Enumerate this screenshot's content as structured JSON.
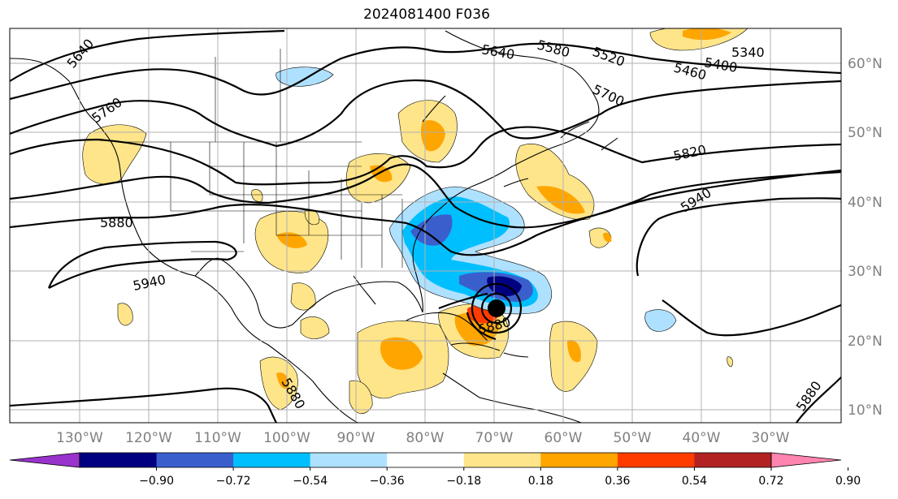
{
  "title": "2024081400 F036",
  "lon_ticks": [
    "130°W",
    "120°W",
    "110°W",
    "100°W",
    "90°W",
    "80°W",
    "70°W",
    "60°W",
    "50°W",
    "40°W",
    "30°W"
  ],
  "lat_ticks": [
    "60°N",
    "50°N",
    "40°N",
    "30°N",
    "20°N",
    "10°N"
  ],
  "contour_labels": [
    "5640",
    "5640",
    "5580",
    "5520",
    "5460",
    "5400",
    "5340",
    "5700",
    "5760",
    "5820",
    "5880",
    "5880",
    "5880",
    "5880",
    "5940",
    "5940"
  ],
  "colorbar": {
    "ticks": [
      "−0.90",
      "−0.72",
      "−0.54",
      "−0.36",
      "−0.18",
      "0.18",
      "0.36",
      "0.54",
      "0.72",
      "0.90"
    ],
    "colors": [
      "#9933cc",
      "#000080",
      "#3a5fcd",
      "#00bfff",
      "#aee1ff",
      "#ffffff",
      "#ffe58a",
      "#ffa500",
      "#ff3c00",
      "#b22222",
      "#ff85b0"
    ]
  },
  "storm_marker": "storm-center"
}
